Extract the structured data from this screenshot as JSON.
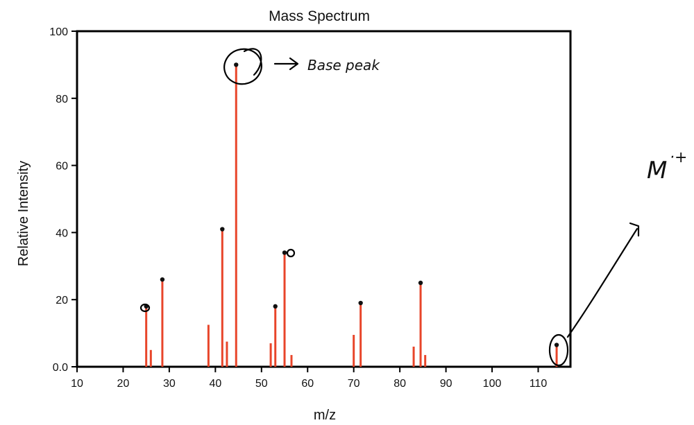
{
  "chart_data": {
    "type": "bar",
    "title": "Mass Spectrum",
    "xlabel": "m/z",
    "ylabel": "Relative Intensity",
    "xlim": [
      10,
      117
    ],
    "ylim": [
      0,
      100
    ],
    "xticks": [
      10,
      20,
      30,
      40,
      50,
      60,
      70,
      80,
      90,
      100,
      110
    ],
    "yticks": [
      "0.0",
      "20",
      "40",
      "60",
      "80",
      "100"
    ],
    "bar_color": "#e8452a",
    "grid": false,
    "peaks": [
      {
        "x": 25,
        "y": 18
      },
      {
        "x": 26,
        "y": 5
      },
      {
        "x": 28.5,
        "y": 26
      },
      {
        "x": 38.5,
        "y": 12.5
      },
      {
        "x": 41.5,
        "y": 41
      },
      {
        "x": 42.5,
        "y": 7.5
      },
      {
        "x": 44.5,
        "y": 90
      },
      {
        "x": 52,
        "y": 7
      },
      {
        "x": 53,
        "y": 18
      },
      {
        "x": 55,
        "y": 34
      },
      {
        "x": 56.5,
        "y": 3.5
      },
      {
        "x": 70,
        "y": 9.5
      },
      {
        "x": 71.5,
        "y": 19
      },
      {
        "x": 83,
        "y": 6
      },
      {
        "x": 84.5,
        "y": 25
      },
      {
        "x": 85.5,
        "y": 3.5
      },
      {
        "x": 114,
        "y": 6.5
      }
    ]
  },
  "annotations": {
    "base_peak_note": "Base peak",
    "molecular_ion_note": "M",
    "molecular_ion_charge": "·+"
  }
}
